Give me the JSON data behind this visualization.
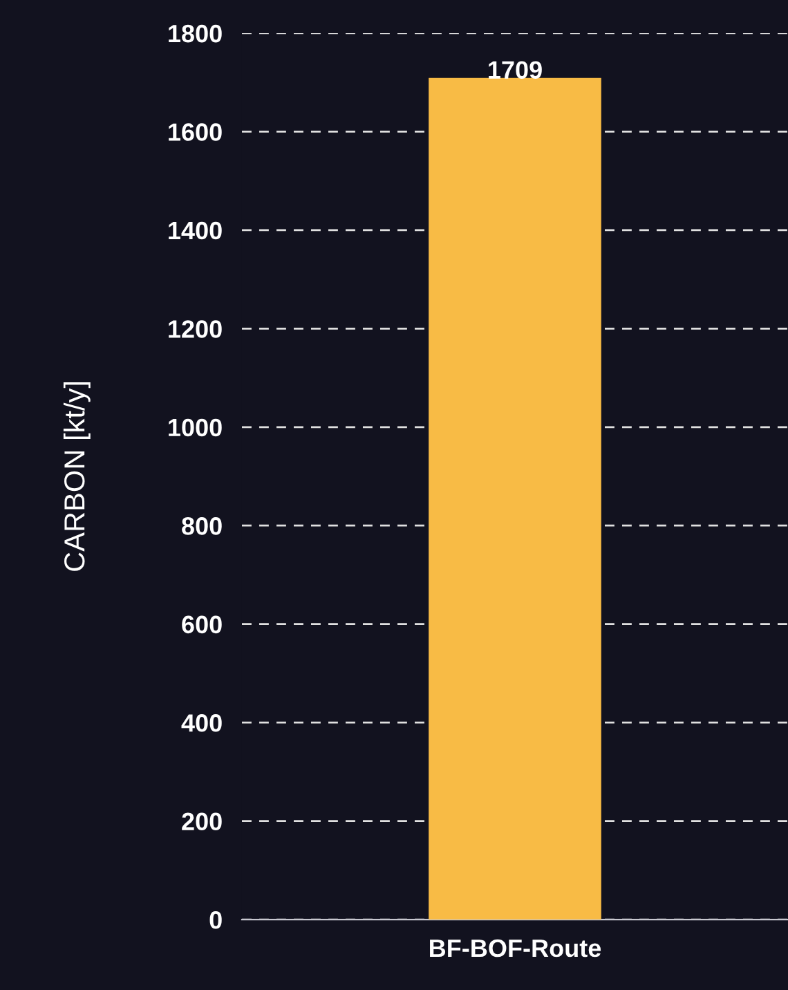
{
  "chart_data": {
    "type": "bar",
    "ylabel": "CARBON [kt/y]",
    "categories": [
      "BF-BOF-Route"
    ],
    "values": [
      1709
    ],
    "color": "#f8bb45",
    "ylim": [
      0,
      1800
    ],
    "yticks": [
      0,
      200,
      400,
      600,
      800,
      1000,
      1200,
      1400,
      1600,
      1800
    ],
    "grid": "y",
    "data_labels": true
  }
}
